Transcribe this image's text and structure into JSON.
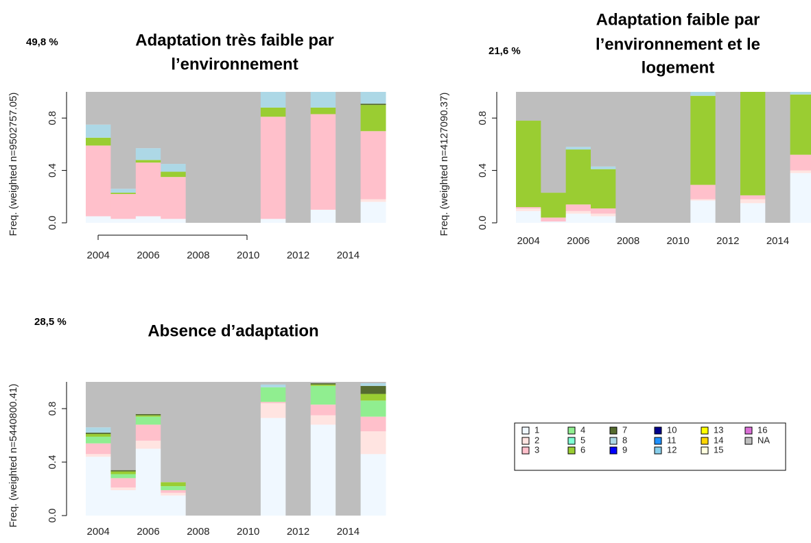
{
  "chart_data": [
    {
      "type": "bar",
      "stacked": true,
      "share": "49,8 %",
      "title": [
        "Adaptation très faible par",
        "l’environnement"
      ],
      "ylabel": "Freq. (weighted n=9502757.05)",
      "categories": [
        2004,
        null,
        2006,
        null,
        2008,
        null,
        2010,
        null,
        2012,
        null,
        2014,
        null
      ],
      "ylim": [
        0,
        1
      ],
      "yticks": [
        {
          "value": 0,
          "label": "0.0"
        },
        {
          "value": 0.4,
          "label": "0.4"
        },
        {
          "value": 0.8,
          "label": "0.8"
        }
      ],
      "series": [
        {
          "name": "1",
          "color": "#f0f8ff",
          "values": [
            0.05,
            0.03,
            0.05,
            0.03,
            0,
            0,
            0,
            0.03,
            0,
            0.1,
            0,
            0.16
          ]
        },
        {
          "name": "2",
          "color": "#ffe4e1",
          "values": [
            0,
            0,
            0,
            0,
            0,
            0,
            0,
            0,
            0,
            0,
            0,
            0.02
          ]
        },
        {
          "name": "3",
          "color": "#ffc0cb",
          "values": [
            0.54,
            0.19,
            0.41,
            0.32,
            0,
            0,
            0,
            0.78,
            0,
            0.73,
            0,
            0.52
          ]
        },
        {
          "name": "6",
          "color": "#9acd32",
          "values": [
            0.06,
            0.01,
            0.02,
            0.04,
            0,
            0,
            0,
            0.07,
            0,
            0.05,
            0,
            0.2
          ]
        },
        {
          "name": "7",
          "color": "#556b2f",
          "values": [
            0,
            0,
            0,
            0,
            0,
            0,
            0,
            0,
            0,
            0,
            0,
            0.01
          ]
        },
        {
          "name": "8",
          "color": "#add8e6",
          "values": [
            0.1,
            0.03,
            0.09,
            0.06,
            0,
            0,
            0,
            0.12,
            0,
            0.12,
            0,
            0.09
          ]
        },
        {
          "name": "NA",
          "color": "#bebebe",
          "values": [
            0.25,
            0.74,
            0.43,
            0.55,
            1,
            1,
            1,
            0,
            1,
            0,
            1,
            0
          ]
        }
      ]
    },
    {
      "type": "bar",
      "stacked": true,
      "share": "21,6 %",
      "title": [
        "Adaptation faible par",
        "l’environnement et le",
        "logement"
      ],
      "ylabel": "Freq. (weighted n=4127090.37)",
      "categories": [
        2004,
        null,
        2006,
        null,
        2008,
        null,
        2010,
        null,
        2012,
        null,
        2014,
        null
      ],
      "ylim": [
        0,
        1
      ],
      "yticks": [
        {
          "value": 0,
          "label": "0.0"
        },
        {
          "value": 0.4,
          "label": "0.4"
        },
        {
          "value": 0.8,
          "label": "0.8"
        }
      ],
      "series": [
        {
          "name": "1",
          "color": "#f0f8ff",
          "values": [
            0.09,
            0.01,
            0.07,
            0.05,
            0,
            0,
            0,
            0.17,
            0,
            0.15,
            0,
            0.38
          ]
        },
        {
          "name": "2",
          "color": "#ffe4e1",
          "values": [
            0.02,
            0,
            0.02,
            0.02,
            0,
            0,
            0,
            0.01,
            0,
            0.03,
            0,
            0.02
          ]
        },
        {
          "name": "3",
          "color": "#ffc0cb",
          "values": [
            0.01,
            0.03,
            0.05,
            0.04,
            0,
            0,
            0,
            0.11,
            0,
            0.03,
            0,
            0.12
          ]
        },
        {
          "name": "6",
          "color": "#9acd32",
          "values": [
            0.66,
            0.19,
            0.42,
            0.3,
            0,
            0,
            0,
            0.68,
            0,
            0.79,
            0,
            0.46
          ]
        },
        {
          "name": "8",
          "color": "#add8e6",
          "values": [
            0,
            0,
            0.02,
            0.02,
            0,
            0,
            0,
            0.03,
            0,
            0,
            0,
            0.02
          ]
        },
        {
          "name": "NA",
          "color": "#bebebe",
          "values": [
            0.22,
            0.77,
            0.42,
            0.57,
            1,
            1,
            1,
            0,
            1,
            0,
            1,
            0
          ]
        }
      ]
    },
    {
      "type": "bar",
      "stacked": true,
      "share": "28,5 %",
      "title": [
        "Absence d’adaptation"
      ],
      "ylabel": "Freq. (weighted n=5440800.41)",
      "categories": [
        2004,
        null,
        2006,
        null,
        2008,
        null,
        2010,
        null,
        2012,
        null,
        2014,
        null
      ],
      "ylim": [
        0,
        1
      ],
      "yticks": [
        {
          "value": 0,
          "label": "0.0"
        },
        {
          "value": 0.4,
          "label": "0.4"
        },
        {
          "value": 0.8,
          "label": "0.8"
        }
      ],
      "series": [
        {
          "name": "1",
          "color": "#f0f8ff",
          "values": [
            0.44,
            0.19,
            0.5,
            0.15,
            0,
            0,
            0,
            0.73,
            0,
            0.68,
            0,
            0.46
          ]
        },
        {
          "name": "2",
          "color": "#ffe4e1",
          "values": [
            0.02,
            0.02,
            0.06,
            0.02,
            0,
            0,
            0,
            0.11,
            0,
            0.07,
            0,
            0.17
          ]
        },
        {
          "name": "3",
          "color": "#ffc0cb",
          "values": [
            0.08,
            0.07,
            0.12,
            0.02,
            0,
            0,
            0,
            0.01,
            0,
            0.08,
            0,
            0.11
          ]
        },
        {
          "name": "4",
          "color": "#90ee90",
          "values": [
            0.05,
            0.03,
            0.06,
            0.03,
            0,
            0,
            0,
            0.11,
            0,
            0.14,
            0,
            0.12
          ]
        },
        {
          "name": "6",
          "color": "#9acd32",
          "values": [
            0.02,
            0.02,
            0.01,
            0.03,
            0,
            0,
            0,
            0,
            0,
            0.01,
            0,
            0.05
          ]
        },
        {
          "name": "7",
          "color": "#556b2f",
          "values": [
            0.01,
            0.01,
            0.01,
            0,
            0,
            0,
            0,
            0,
            0,
            0.01,
            0,
            0.06
          ]
        },
        {
          "name": "8",
          "color": "#add8e6",
          "values": [
            0.04,
            0,
            0,
            0,
            0,
            0,
            0,
            0.02,
            0,
            0,
            0,
            0.02
          ]
        },
        {
          "name": "NA",
          "color": "#bebebe",
          "values": [
            0.34,
            0.66,
            0.24,
            0.75,
            1,
            1,
            1,
            0.02,
            1,
            0.01,
            1,
            0.01
          ]
        }
      ]
    }
  ],
  "legend": {
    "entries": [
      {
        "name": "1",
        "color": "#f0f8ff"
      },
      {
        "name": "2",
        "color": "#ffe4e1"
      },
      {
        "name": "3",
        "color": "#ffc0cb"
      },
      {
        "name": "4",
        "color": "#90ee90"
      },
      {
        "name": "5",
        "color": "#7fffd4"
      },
      {
        "name": "6",
        "color": "#9acd32"
      },
      {
        "name": "7",
        "color": "#556b2f"
      },
      {
        "name": "8",
        "color": "#add8e6"
      },
      {
        "name": "9",
        "color": "#0000ff"
      },
      {
        "name": "10",
        "color": "#00008b"
      },
      {
        "name": "11",
        "color": "#1e90ff"
      },
      {
        "name": "12",
        "color": "#87ceeb"
      },
      {
        "name": "13",
        "color": "#ffff00"
      },
      {
        "name": "14",
        "color": "#ffd700"
      },
      {
        "name": "15",
        "color": "#ffffe0"
      },
      {
        "name": "16",
        "color": "#da70d6"
      },
      {
        "name": "NA",
        "color": "#bebebe"
      }
    ]
  }
}
